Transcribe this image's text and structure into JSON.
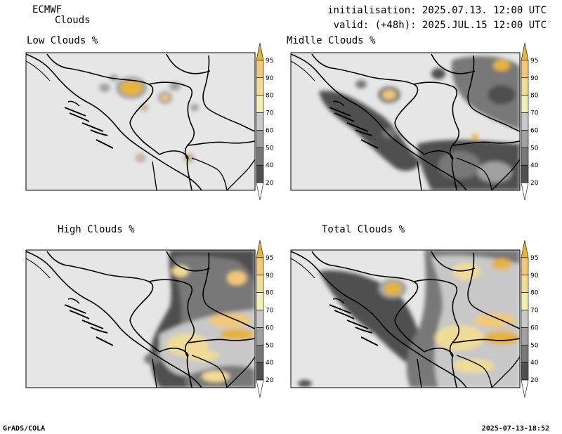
{
  "header": {
    "model": "ECMWF",
    "variable": "Clouds",
    "initialisation": "initialisation: 2025.07.13. 12:00 UTC",
    "valid": "valid: (+48h): 2025.JUL.15 12:00 UTC"
  },
  "panels": [
    {
      "title": "Low Clouds %"
    },
    {
      "title": "Midlle Clouds %"
    },
    {
      "title": "High Clouds %"
    },
    {
      "title": "Total Clouds %"
    }
  ],
  "colorbar": {
    "levels": [
      "20",
      "40",
      "50",
      "60",
      "70",
      "80",
      "90",
      "95"
    ],
    "colors": [
      "#ffffff",
      "#505050",
      "#787878",
      "#a0a0a0",
      "#c8c8c8",
      "#f0f0b4",
      "#f0dc96",
      "#f0c878",
      "#e6b43c"
    ]
  },
  "map_colors": {
    "land": "#e6e6e6",
    "border": "#000000",
    "coast": "#000000"
  },
  "footer": {
    "left": "GrADS/COLA",
    "right": "2025-07-13-18:52"
  }
}
